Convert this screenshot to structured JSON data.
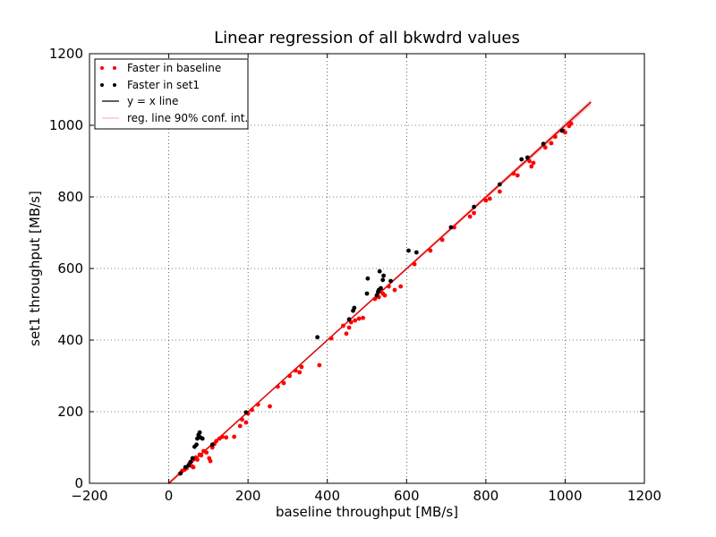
{
  "chart_data": {
    "type": "scatter",
    "title": "Linear regression of all bkwdrd values",
    "xlabel": "baseline throughput [MB/s]",
    "ylabel": "set1 throughput [MB/s]",
    "xlim": [
      -200,
      1200
    ],
    "ylim": [
      0,
      1200
    ],
    "xticks": [
      "−200",
      "0",
      "200",
      "400",
      "600",
      "800",
      "1000",
      "1200"
    ],
    "yticks": [
      "0",
      "200",
      "400",
      "600",
      "800",
      "1000",
      "1200"
    ],
    "grid": true,
    "legend_position": "top-left",
    "colors": {
      "baseline": "#ff0000",
      "set1": "#000000",
      "identity": "#000000",
      "regression": "#dd0000",
      "confidence": "#ffaaaa"
    },
    "legend": [
      {
        "label": "Faster in baseline",
        "kind": "point",
        "color": "#ff0000"
      },
      {
        "label": "Faster in set1",
        "kind": "point",
        "color": "#000000"
      },
      {
        "label": "y = x line",
        "kind": "line",
        "color": "#000000"
      },
      {
        "label": "reg. line 90% conf. int.",
        "kind": "line",
        "color": "#ffaaaa"
      }
    ],
    "series": [
      {
        "name": "Faster in baseline",
        "color": "#ff0000",
        "points": [
          [
            28,
            27
          ],
          [
            34,
            35
          ],
          [
            40,
            38
          ],
          [
            45,
            42
          ],
          [
            52,
            55
          ],
          [
            58,
            48
          ],
          [
            62,
            45
          ],
          [
            68,
            72
          ],
          [
            72,
            66
          ],
          [
            78,
            80
          ],
          [
            82,
            78
          ],
          [
            88,
            90
          ],
          [
            95,
            86
          ],
          [
            102,
            70
          ],
          [
            105,
            62
          ],
          [
            110,
            100
          ],
          [
            115,
            110
          ],
          [
            120,
            118
          ],
          [
            128,
            125
          ],
          [
            135,
            130
          ],
          [
            145,
            128
          ],
          [
            165,
            130
          ],
          [
            180,
            160
          ],
          [
            185,
            178
          ],
          [
            195,
            170
          ],
          [
            200,
            195
          ],
          [
            210,
            205
          ],
          [
            225,
            220
          ],
          [
            255,
            215
          ],
          [
            275,
            270
          ],
          [
            290,
            280
          ],
          [
            305,
            300
          ],
          [
            320,
            315
          ],
          [
            330,
            310
          ],
          [
            335,
            325
          ],
          [
            380,
            330
          ],
          [
            410,
            405
          ],
          [
            440,
            440
          ],
          [
            448,
            418
          ],
          [
            455,
            435
          ],
          [
            460,
            450
          ],
          [
            470,
            455
          ],
          [
            480,
            460
          ],
          [
            490,
            462
          ],
          [
            520,
            515
          ],
          [
            525,
            525
          ],
          [
            530,
            520
          ],
          [
            540,
            530
          ],
          [
            545,
            525
          ],
          [
            555,
            550
          ],
          [
            570,
            540
          ],
          [
            585,
            550
          ],
          [
            620,
            612
          ],
          [
            660,
            650
          ],
          [
            690,
            680
          ],
          [
            720,
            715
          ],
          [
            760,
            745
          ],
          [
            770,
            755
          ],
          [
            800,
            790
          ],
          [
            810,
            795
          ],
          [
            835,
            815
          ],
          [
            870,
            865
          ],
          [
            880,
            860
          ],
          [
            910,
            900
          ],
          [
            915,
            885
          ],
          [
            920,
            895
          ],
          [
            950,
            938
          ],
          [
            965,
            950
          ],
          [
            975,
            968
          ],
          [
            995,
            985
          ],
          [
            1000,
            980
          ],
          [
            1010,
            998
          ],
          [
            1015,
            1005
          ]
        ]
      },
      {
        "name": "Faster in set1",
        "color": "#000000",
        "points": [
          [
            30,
            28
          ],
          [
            42,
            45
          ],
          [
            50,
            50
          ],
          [
            55,
            60
          ],
          [
            60,
            70
          ],
          [
            65,
            102
          ],
          [
            70,
            108
          ],
          [
            72,
            125
          ],
          [
            75,
            135
          ],
          [
            78,
            142
          ],
          [
            80,
            128
          ],
          [
            85,
            125
          ],
          [
            110,
            108
          ],
          [
            195,
            198
          ],
          [
            375,
            408
          ],
          [
            455,
            458
          ],
          [
            465,
            482
          ],
          [
            468,
            490
          ],
          [
            500,
            530
          ],
          [
            502,
            572
          ],
          [
            525,
            525
          ],
          [
            528,
            535
          ],
          [
            530,
            540
          ],
          [
            532,
            592
          ],
          [
            535,
            545
          ],
          [
            540,
            568
          ],
          [
            542,
            580
          ],
          [
            560,
            565
          ],
          [
            605,
            650
          ],
          [
            625,
            645
          ],
          [
            712,
            715
          ],
          [
            770,
            772
          ],
          [
            835,
            835
          ],
          [
            890,
            905
          ],
          [
            905,
            910
          ],
          [
            945,
            948
          ],
          [
            992,
            985
          ]
        ]
      }
    ],
    "lines": [
      {
        "name": "y = x line",
        "color": "#000000",
        "x": [
          0,
          1065
        ],
        "y": [
          0,
          1065
        ]
      },
      {
        "name": "reg. line 90% conf. int.",
        "color": "#ffaaaa",
        "x": [
          0,
          1065
        ],
        "y": [
          -3,
          1070
        ]
      },
      {
        "name": "reg. line 90% conf. int.",
        "color": "#ffaaaa",
        "x": [
          0,
          1065
        ],
        "y": [
          3,
          1058
        ]
      },
      {
        "name": "regression",
        "color": "#dd0000",
        "x": [
          0,
          1065
        ],
        "y": [
          0,
          1064
        ]
      }
    ]
  }
}
